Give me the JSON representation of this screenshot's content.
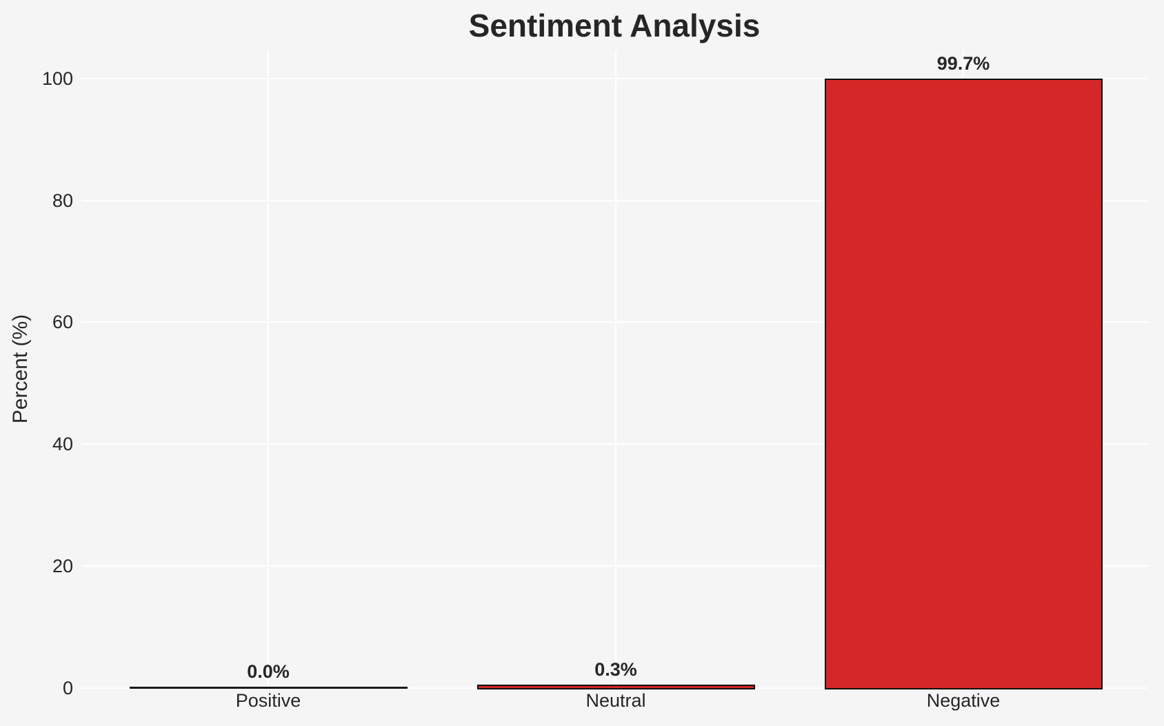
{
  "figure": {
    "background_color": "#f5f5f5",
    "grid_color": "#ffffff",
    "text_color": "#262626"
  },
  "chart_data": {
    "type": "bar",
    "title": "Sentiment Analysis",
    "categories": [
      "Positive",
      "Neutral",
      "Negative"
    ],
    "values": [
      0.0,
      0.3,
      99.7
    ],
    "value_labels": [
      "0.0%",
      "0.3%",
      "99.7%"
    ],
    "xlabel": "",
    "ylabel": "Percent (%)",
    "ylim": [
      0,
      104.6
    ],
    "yticks": [
      0,
      20,
      40,
      60,
      80,
      100
    ],
    "ytick_labels": [
      "0",
      "20",
      "40",
      "60",
      "80",
      "100"
    ],
    "grid": "on",
    "legend": "none",
    "bar_fill_color": "#d62728",
    "bar_edge_color": "#0f0f0f"
  }
}
